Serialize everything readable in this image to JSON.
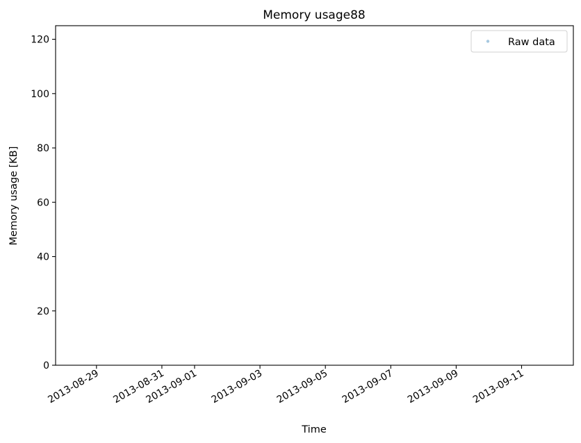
{
  "chart_data": {
    "type": "scatter",
    "title": "Memory usage88",
    "xlabel": "Time",
    "ylabel": "Memory usage [KB]",
    "x_type": "date",
    "xlim": [
      "2013-08-27T18:00",
      "2013-09-12T14:00"
    ],
    "ylim": [
      0,
      125
    ],
    "x_ticks": [
      {
        "value": "2013-08-29",
        "label": "2013-08-29"
      },
      {
        "value": "2013-08-31",
        "label": "2013-08-31"
      },
      {
        "value": "2013-09-01",
        "label": "2013-09-01"
      },
      {
        "value": "2013-09-03",
        "label": "2013-09-03"
      },
      {
        "value": "2013-09-05",
        "label": "2013-09-05"
      },
      {
        "value": "2013-09-07",
        "label": "2013-09-07"
      },
      {
        "value": "2013-09-09",
        "label": "2013-09-09"
      },
      {
        "value": "2013-09-11",
        "label": "2013-09-11"
      }
    ],
    "y_ticks": [
      0,
      20,
      40,
      60,
      80,
      100,
      120
    ],
    "grid": false,
    "legend_position": "top-right",
    "series": [
      {
        "name": "Raw data",
        "color": "#a6c8e0",
        "marker": "point",
        "x": [],
        "y": []
      }
    ]
  }
}
